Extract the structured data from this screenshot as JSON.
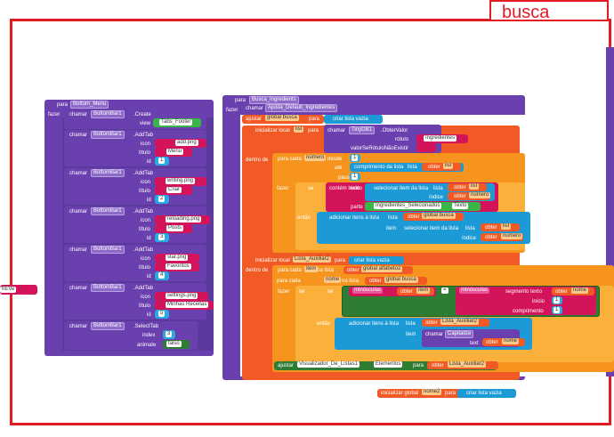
{
  "busca_label": "busca",
  "stub": {
    "text": "hEVe",
    "dropdown": "▾"
  },
  "bottom_menu": {
    "head": "para",
    "name": "Bottom_Menu",
    "do": "fazer",
    "create": {
      "call": "chamar",
      "comp": "BottomBar1",
      "method": ".Create",
      "view_label": "view",
      "view_value": "Tabs_Footer"
    },
    "tabs": [
      {
        "call": "chamar",
        "comp": "BottomBar1",
        "method": ".AddTab",
        "icon_label": "icon",
        "icon": "add.png",
        "title_label": "título",
        "title": "Menu",
        "id_label": "id",
        "id": "1"
      },
      {
        "call": "chamar",
        "comp": "BottomBar1",
        "method": ".AddTab",
        "icon_label": "icon",
        "icon": "writing.png",
        "title_label": "título",
        "title": "Criar",
        "id_label": "id",
        "id": "2"
      },
      {
        "call": "chamar",
        "comp": "BottomBar1",
        "method": ".AddTab",
        "icon_label": "icon",
        "icon": "reloading.png",
        "title_label": "título",
        "title": "Posts",
        "id_label": "id",
        "id": "3"
      },
      {
        "call": "chamar",
        "comp": "BottomBar1",
        "method": ".AddTab",
        "icon_label": "icon",
        "icon": "star.png",
        "title_label": "título",
        "title": "Favoritos",
        "id_label": "id",
        "id": "4"
      },
      {
        "call": "chamar",
        "comp": "BottomBar1",
        "method": ".AddTab",
        "icon_label": "icon",
        "icon": "settings.png",
        "title_label": "título",
        "title": "Minhas Receitas",
        "id_label": "id",
        "id": "5"
      }
    ],
    "select": {
      "call": "chamar",
      "comp": "BottomBar1",
      "method": ".SelectTab",
      "index_label": "index",
      "index": "3",
      "animate_label": "animate",
      "animate": "falso"
    }
  },
  "busca": {
    "head": "para",
    "name": "Busca_Ingredients",
    "do": "fazer",
    "call1": {
      "call": "chamar",
      "name": "Ajusta_Default_Ingredientes"
    },
    "adjust": {
      "label": "ajustar",
      "var": "global busca",
      "to": "para",
      "create": "criar lista vazia"
    },
    "local_list": {
      "label": "inicializar local",
      "var": "list",
      "to": "para",
      "call": "chamar",
      "db": "TinyDB1",
      "method": ".ObterValor",
      "tag_label": "rótulo",
      "tag": "Ingredientes",
      "default_label": "valorSeRótuloNãoExistir",
      "default": " "
    },
    "in_do": "dentro de",
    "for1": {
      "label": "para cada",
      "var": "número",
      "from_label": "desde",
      "from": "1",
      "to_label": "até",
      "length": "comprimento da lista",
      "length_list": "lista",
      "get": "obter",
      "list_var": "list",
      "step_label": "passo",
      "step": "1",
      "do": "fazer",
      "if": "se",
      "contains": "contém texto",
      "text_label": "texto",
      "select_item": "selecionar item da lista",
      "sel_list": "lista",
      "sel_get": "obter",
      "sel_var": "list",
      "index_label": "índice",
      "index_get": "obter",
      "index_var": "número",
      "part_label": "parte",
      "part_value": "Ingredientes_Selecionados",
      "part_prop": "Texto",
      "then": "então",
      "add": "adicionar itens à lista",
      "add_list_label": "lista",
      "add_get": "obter",
      "add_var": "global busca",
      "item_label": "item",
      "item_select": "selecionar item da lista",
      "item_list_label": "lista",
      "item_get": "obter",
      "item_var": "list",
      "item_index_label": "índice",
      "item_index_get": "obter",
      "item_index_var": "número"
    },
    "local2": {
      "label": "inicializar local",
      "var": "Lista_Auxiliar2",
      "to": "para",
      "create": "criar lista vazia"
    },
    "in_do2": "dentro de",
    "for2": {
      "label": "para cada",
      "var": "nome",
      "in_list": "na lista",
      "get": "obter",
      "list_var": "global alfabeto2",
      "label_b": "para cada",
      "var_b": "item",
      "in_list_b": "na lista",
      "get_b": "obter",
      "list_var_b": "global busca",
      "do": "fazer",
      "if": "se",
      "lower1": "minúsculas",
      "get1": "obter",
      "var1": "item",
      "eq": "=",
      "lower2": "minúsculas",
      "segment": "segmento texto",
      "get2": "obter",
      "var2": "nome",
      "start_label": "início",
      "start": "1",
      "length_label": "comprimento",
      "length": "1",
      "then": "então",
      "add": "adicionar itens à lista",
      "list_label": "lista",
      "add_get": "obter",
      "add_var": "Lista_Auxiliar2",
      "item_label": "item",
      "call": "chamar",
      "capitalize": "Capitalize",
      "text_label": "text",
      "text_get": "obter",
      "text_var": "nome"
    },
    "set_footer": {
      "label": "ajustar",
      "comp": "Visualizador_De_Listas1",
      "prop": "Elementos",
      "to": "para",
      "get": "obter",
      "var": "Lista_Auxiliar2"
    }
  },
  "init_global": {
    "label": "inicializar global",
    "var": "nome2",
    "to": "para",
    "create": "criar lista vazia"
  }
}
